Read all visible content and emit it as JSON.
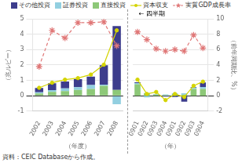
{
  "chart_data": [
    {
      "type": "bar",
      "stacked": true,
      "grid": true,
      "legend": "top",
      "categories": [
        "2002",
        "2003",
        "2004",
        "2005",
        "2006",
        "2007",
        "2008"
      ],
      "xlabel": "（年度）",
      "ylabel": "（兆ルピー）",
      "ylim": [
        -1,
        5
      ],
      "yticks": [
        -1,
        0,
        1,
        2,
        3,
        4,
        5
      ],
      "y2lim": [
        -2,
        10
      ],
      "annotations": [
        "資料：CEIC Databaseから作成。"
      ],
      "series": [
        {
          "name": "直接投資",
          "color": "#8dc878",
          "values": [
            0.15,
            0.25,
            0.3,
            0.38,
            0.45,
            0.65,
            0.38
          ]
        },
        {
          "name": "証券投資",
          "color": "#92cfe0",
          "values": [
            0.08,
            0.12,
            0.18,
            0.18,
            0.25,
            0.08,
            -0.55
          ]
        },
        {
          "name": "その他投資",
          "color": "#3d3d8c",
          "values": [
            0.28,
            0.45,
            0.45,
            0.52,
            0.55,
            1.25,
            4.15
          ]
        },
        {
          "name": "資本収支",
          "type": "line",
          "color": "#d4d400",
          "marker": "circle",
          "line_style": "solid",
          "values": [
            0.52,
            0.85,
            1.05,
            1.15,
            1.38,
            2.02,
            4.25
          ]
        },
        {
          "name": "実質GDP成長率",
          "type": "line",
          "axis": "y2",
          "color": "#e07878",
          "marker": "star",
          "line_style": "dashed",
          "values": [
            3.8,
            8.5,
            7.5,
            9.5,
            9.5,
            9.6,
            6.5
          ]
        }
      ]
    },
    {
      "type": "bar",
      "stacked": true,
      "grid": true,
      "categories": [
        "0901",
        "0902",
        "0903",
        "0904",
        "0901",
        "0902",
        "0903",
        "0904"
      ],
      "xlabel": "（年）",
      "y2label": "（前年同期比、%）",
      "ylim": [
        -1,
        5
      ],
      "y2lim": [
        -2,
        10
      ],
      "y2ticks": [
        -2,
        0,
        2,
        4,
        6,
        8,
        10
      ],
      "annotations": [
        "← 四半期"
      ],
      "series": [
        {
          "name": "直接投資",
          "color": "#8dc878",
          "values": [
            0.75,
            0.18,
            0.08,
            0.04,
            0.12,
            0.08,
            0.45,
            0.45
          ]
        },
        {
          "name": "証券投資",
          "color": "#92cfe0",
          "values": [
            0.08,
            -0.1,
            0.04,
            0.05,
            0.04,
            0.08,
            0.08,
            0.12
          ]
        },
        {
          "name": "その他投資",
          "color": "#3d3d8c",
          "values": [
            0.05,
            0.0,
            0.0,
            -0.05,
            -0.08,
            -0.38,
            0.04,
            0.3
          ]
        },
        {
          "name": "資本収支",
          "type": "line",
          "color": "#d4d400",
          "marker": "circle",
          "line_style": "solid",
          "values": [
            1.05,
            0.12,
            0.25,
            -0.28,
            0.12,
            -0.08,
            0.65,
            0.92
          ]
        },
        {
          "name": "実質GDP成長率",
          "type": "line",
          "axis": "y2",
          "color": "#e07878",
          "marker": "star",
          "line_style": "dashed",
          "values": [
            8.3,
            7.3,
            6.1,
            5.8,
            6.0,
            5.8,
            7.9,
            6.2
          ]
        }
      ]
    }
  ]
}
